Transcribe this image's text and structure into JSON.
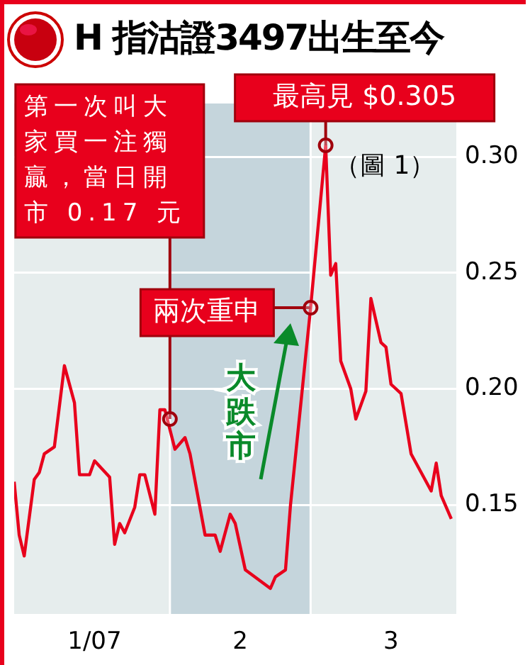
{
  "chart_data": {
    "type": "line",
    "title": "H 指沽證3497出生至今",
    "x": [
      "2007-01-01",
      "2007-01-02",
      "2007-01-03",
      "2007-01-05",
      "2007-01-06",
      "2007-01-07",
      "2007-01-09",
      "2007-01-11",
      "2007-01-13",
      "2007-01-14",
      "2007-01-16",
      "2007-01-17",
      "2007-01-20",
      "2007-01-21",
      "2007-01-22",
      "2007-01-23",
      "2007-01-25",
      "2007-01-26",
      "2007-01-27",
      "2007-01-29",
      "2007-01-30",
      "2007-01-31",
      "2007-02-02",
      "2007-02-04",
      "2007-02-05",
      "2007-02-08",
      "2007-02-10",
      "2007-02-11",
      "2007-02-13",
      "2007-02-14",
      "2007-02-16",
      "2007-02-21",
      "2007-02-22",
      "2007-02-24",
      "2007-02-25",
      "2007-03-01",
      "2007-03-04",
      "2007-03-05",
      "2007-03-06",
      "2007-03-07",
      "2007-03-09",
      "2007-03-10",
      "2007-03-12",
      "2007-03-13",
      "2007-03-15",
      "2007-03-16",
      "2007-03-17",
      "2007-03-19",
      "2007-03-21",
      "2007-03-25",
      "2007-03-26",
      "2007-03-27",
      "2007-03-29"
    ],
    "series": [
      {
        "color": "#e8001c",
        "values": [
          0.16,
          0.137,
          0.128,
          0.161,
          0.164,
          0.172,
          0.175,
          0.21,
          0.194,
          0.163,
          0.163,
          0.169,
          0.162,
          0.133,
          0.142,
          0.138,
          0.149,
          0.163,
          0.163,
          0.146,
          0.191,
          0.191,
          0.174,
          0.179,
          0.172,
          0.137,
          0.137,
          0.13,
          0.146,
          0.142,
          0.122,
          0.114,
          0.119,
          0.122,
          0.15,
          0.235,
          0.305,
          0.249,
          0.254,
          0.212,
          0.2,
          0.187,
          0.199,
          0.239,
          0.22,
          0.218,
          0.202,
          0.198,
          0.172,
          0.156,
          0.168,
          0.154,
          0.144
        ]
      }
    ],
    "xlim": [
      "2007-01-01",
      "2007-03-30"
    ],
    "xticks": [
      {
        "value": "2007-01-17",
        "label": "1/07"
      },
      {
        "value": "2007-02-15",
        "label": "2"
      },
      {
        "value": "2007-03-17",
        "label": "3"
      }
    ],
    "ylim": [
      0.103,
      0.323
    ],
    "yticks": [
      0.15,
      {
        "value": 0.2,
        "label": "0.20"
      },
      0.25,
      {
        "value": 0.3,
        "label": "0.30"
      }
    ],
    "grid": "y",
    "legend": false,
    "marker": "none",
    "bands": [
      {
        "axis": "x",
        "from": "2007-02-01",
        "to": "2007-03-01",
        "color": "#c5d5dc"
      }
    ],
    "annotations": [
      {
        "text": "第一次叫大家買一注獨贏，當日開市 0.17 元",
        "x": "2007-02-01",
        "y": 0.187
      },
      {
        "text": "最高見 $0.305",
        "x": "2007-03-04",
        "y": 0.305
      },
      {
        "text": "兩次重申",
        "x": "2007-03-01",
        "y": 0.235
      },
      "（圖 1）",
      "大跌市"
    ]
  }
}
